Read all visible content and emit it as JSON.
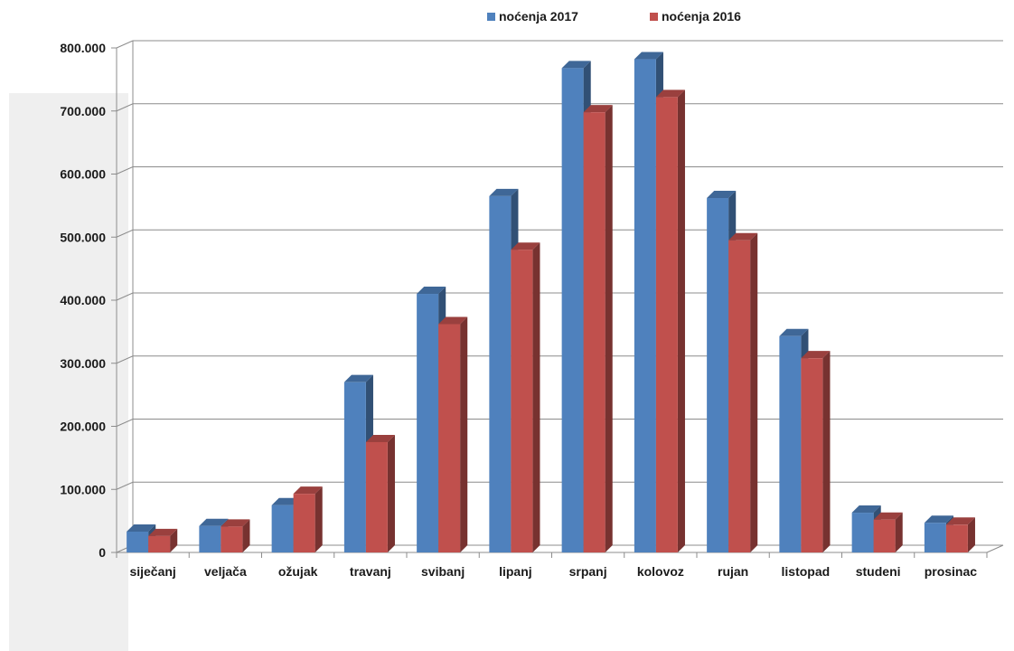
{
  "chart_data": {
    "type": "bar",
    "title": "",
    "xlabel": "",
    "ylabel": "",
    "categories": [
      "siječanj",
      "veljača",
      "ožujak",
      "travanj",
      "svibanj",
      "lipanj",
      "srpanj",
      "kolovoz",
      "rujan",
      "listopad",
      "studeni",
      "prosinac"
    ],
    "series": [
      {
        "name": "noćenja 2017",
        "color": "#4f81bd",
        "values": [
          33000,
          42000,
          75000,
          270000,
          410000,
          565000,
          768000,
          782000,
          562000,
          343000,
          63000,
          47000
        ]
      },
      {
        "name": "noćenja 2016",
        "color": "#c0504d",
        "values": [
          26000,
          41000,
          93000,
          175000,
          362000,
          480000,
          698000,
          722000,
          495000,
          308000,
          52000,
          44000
        ]
      }
    ],
    "ylim": [
      0,
      800000
    ],
    "yticks": [
      "0",
      "100.000",
      "200.000",
      "300.000",
      "400.000",
      "500.000",
      "600.000",
      "700.000",
      "800.000"
    ],
    "grid": true,
    "legend_position": "top",
    "style": "3d-clustered-column"
  }
}
